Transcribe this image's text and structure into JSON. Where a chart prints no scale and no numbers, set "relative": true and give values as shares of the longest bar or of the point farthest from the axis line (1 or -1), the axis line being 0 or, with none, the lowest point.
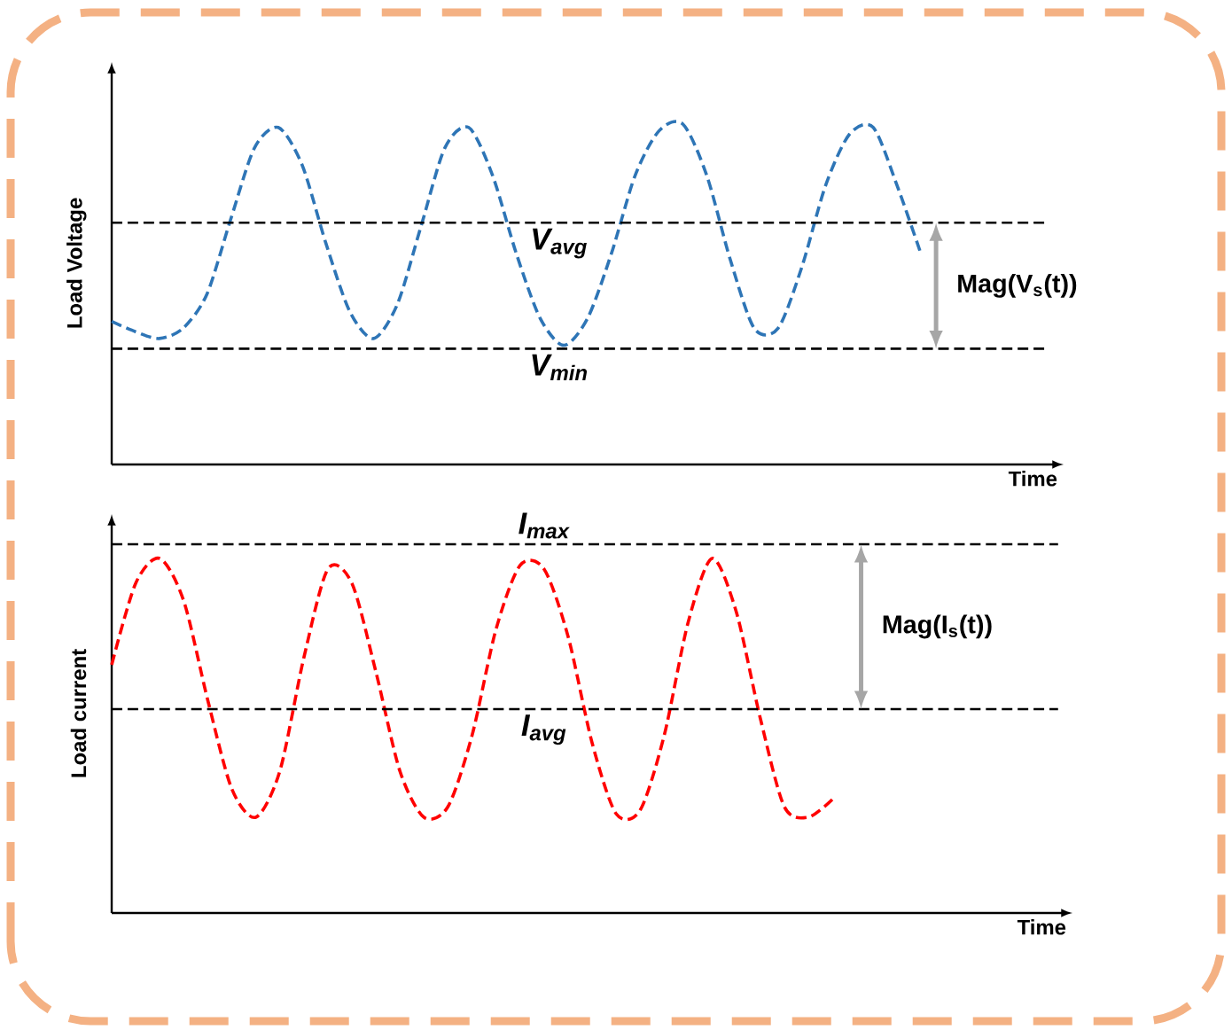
{
  "chart_data": [
    {
      "type": "line",
      "relative": true,
      "ylabel": "Load Voltage",
      "xlabel": "Time",
      "line_style": "dashed",
      "marker": "none",
      "categories": [
        null,
        null,
        null,
        null,
        null,
        null,
        null,
        null,
        null,
        null,
        null,
        null,
        null,
        null,
        null,
        null,
        null,
        null,
        null,
        null,
        null,
        null,
        null,
        null,
        null,
        null,
        null,
        null,
        null,
        null,
        null,
        null,
        null,
        null,
        null,
        null,
        null,
        null,
        null,
        null,
        null
      ],
      "series": [
        {
          "color": "#2e75b6",
          "values": [
            0.42,
            0.39,
            0.37,
            0.4,
            0.5,
            0.72,
            0.93,
            0.99,
            0.88,
            0.65,
            0.45,
            0.37,
            0.47,
            0.7,
            0.93,
            0.99,
            0.85,
            0.62,
            0.43,
            0.35,
            0.43,
            0.62,
            0.85,
            0.98,
            1.0,
            0.85,
            0.6,
            0.4,
            0.4,
            0.58,
            0.82,
            0.97,
            0.99,
            0.82,
            0.62,
            null,
            null,
            null,
            null,
            null,
            null
          ]
        }
      ],
      "ref_lines": [
        {
          "axis": "y",
          "value": 0.71,
          "label": "V$_{avg}$",
          "color": "#000000",
          "line_style": "dashed"
        },
        {
          "axis": "y",
          "value": 0.34,
          "label": "V$_{min}$",
          "color": "#000000",
          "line_style": "dashed"
        }
      ],
      "annotations": [
        "Mag(V$_{s}$(t))"
      ]
    },
    {
      "type": "line",
      "relative": true,
      "ylabel": "Load current",
      "xlabel": "Time",
      "line_style": "dashed",
      "marker": "none",
      "categories": [
        null,
        null,
        null,
        null,
        null,
        null,
        null,
        null,
        null,
        null,
        null,
        null,
        null,
        null,
        null,
        null,
        null,
        null,
        null,
        null,
        null,
        null,
        null,
        null,
        null,
        null,
        null,
        null,
        null,
        null,
        null,
        null,
        null,
        null,
        null,
        null,
        null,
        null,
        null,
        null,
        null
      ],
      "series": [
        {
          "color": "#ff0000",
          "values": [
            0.7,
            0.93,
            1.0,
            0.88,
            0.6,
            0.35,
            0.27,
            0.4,
            0.72,
            0.97,
            0.93,
            0.68,
            0.4,
            0.27,
            0.3,
            0.5,
            0.8,
            0.98,
            0.97,
            0.78,
            0.48,
            0.28,
            0.29,
            0.5,
            0.82,
            1.0,
            0.85,
            0.55,
            0.3,
            0.27,
            0.32,
            null,
            null,
            null,
            null,
            null,
            null,
            null,
            null,
            null,
            null
          ]
        }
      ],
      "ref_lines": [
        {
          "axis": "y",
          "value": 1.04,
          "label": "I$_{max}$",
          "color": "#000000",
          "line_style": "dashed"
        },
        {
          "axis": "y",
          "value": 0.575,
          "label": "I$_{avg}$",
          "color": "#000000",
          "line_style": "dashed"
        }
      ],
      "annotations": [
        "Mag(I$_{s}$(t))"
      ]
    }
  ]
}
